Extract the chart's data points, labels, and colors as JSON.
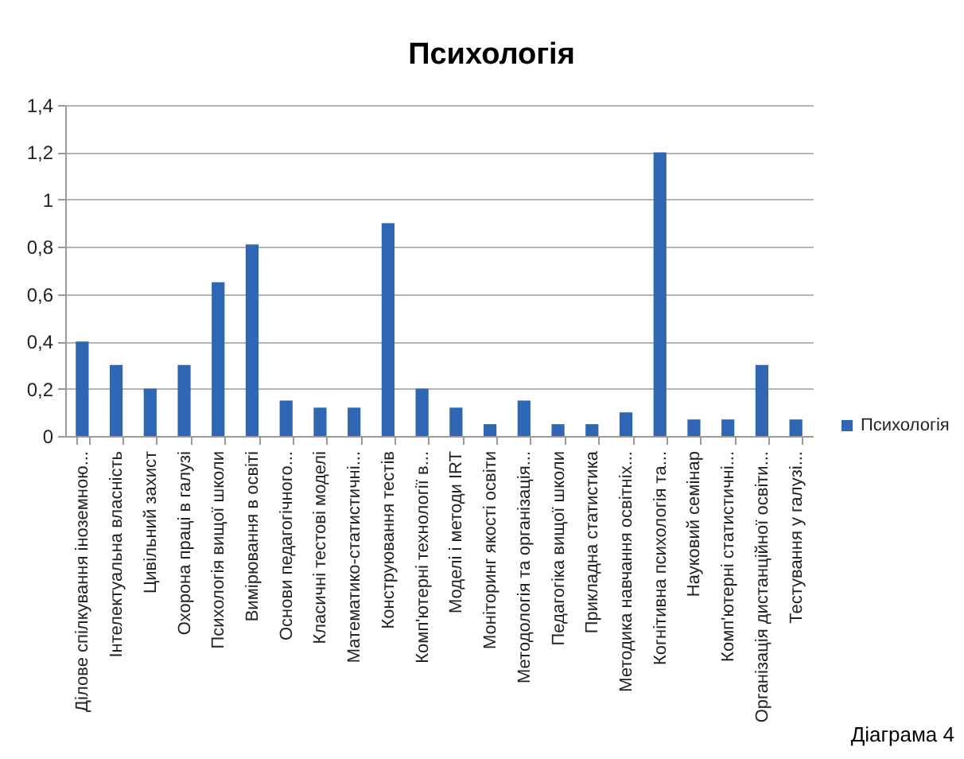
{
  "chart_data": {
    "type": "bar",
    "title": "Психологія",
    "categories": [
      "Ділове спілкування іноземною...",
      "Інтелектуальна власність",
      "Цивільний захист",
      "Охорона праці в галузі",
      "Психологія вищої школи",
      "Вимірювання в освіті",
      "Основи педагогічного...",
      "Класичні тестові моделі",
      "Математико-статистичні...",
      "Конструювання тестів",
      "Комп'ютерні технології в...",
      "Моделі і методи IRT",
      "Моніторинг якості освіти",
      "Методологія та організація...",
      "Педагогіка вищої школи",
      "Прикладна статистика",
      "Методика навчання освітніх...",
      "Когнітивна психологія та...",
      "Науковий семінар",
      "Комп'ютерні статистичні...",
      "Організація дистанційної освіти...",
      "Тестування у галузі..."
    ],
    "series": [
      {
        "name": "Психологія",
        "color": "#2f67b5",
        "values": [
          0.4,
          0.3,
          0.2,
          0.3,
          0.65,
          0.81,
          0.15,
          0.12,
          0.12,
          0.9,
          0.2,
          0.12,
          0.05,
          0.15,
          0.05,
          0.05,
          0.1,
          1.2,
          0.07,
          0.07,
          0.3,
          0.07
        ]
      }
    ],
    "ylim": [
      0,
      1.4
    ],
    "yticks": [
      0,
      {
        "value": 0.2,
        "label": "0,2"
      },
      {
        "value": 0.4,
        "label": "0,4"
      },
      {
        "value": 0.6,
        "label": "0,6"
      },
      {
        "value": 0.8,
        "label": "0,8"
      },
      1,
      {
        "value": 1.2,
        "label": "1,2"
      },
      {
        "value": 1.4,
        "label": "1,4"
      }
    ],
    "grid": "y",
    "legend": "right",
    "annotations": [
      "Діаграма 4"
    ]
  }
}
